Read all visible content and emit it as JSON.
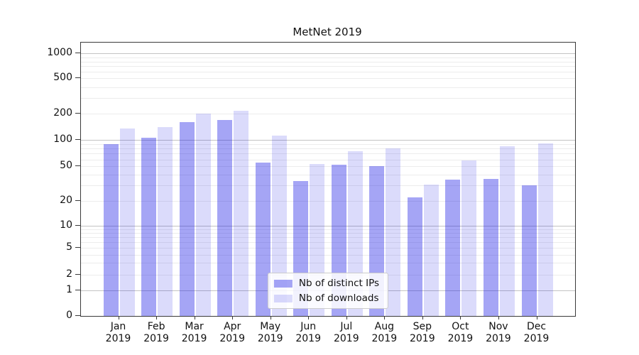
{
  "title": "MetNet 2019",
  "chart_data": {
    "type": "bar",
    "title": "MetNet 2019",
    "categories": [
      "Jan\n2019",
      "Feb\n2019",
      "Mar\n2019",
      "Apr\n2019",
      "May\n2019",
      "Jun\n2019",
      "Jul\n2019",
      "Aug\n2019",
      "Sep\n2019",
      "Oct\n2019",
      "Nov\n2019",
      "Dec\n2019"
    ],
    "series": [
      {
        "name": "Nb of distinct IPs",
        "color": "rgba(30,30,230,0.40)",
        "values": [
          89,
          106,
          160,
          171,
          55,
          34,
          52,
          50,
          22,
          35,
          36,
          30
        ]
      },
      {
        "name": "Nb of downloads",
        "color": "rgba(30,30,230,0.16)",
        "values": [
          135,
          140,
          200,
          215,
          112,
          53,
          74,
          80,
          31,
          58,
          85,
          91
        ]
      }
    ],
    "xlabel": "",
    "ylabel": "",
    "yscale": "symlog",
    "yticks": [
      {
        "label": "0",
        "value": 0
      },
      {
        "label": "1",
        "value": 1
      },
      {
        "label": "2",
        "value": 2
      },
      {
        "label": "5",
        "value": 5
      },
      {
        "label": "10",
        "value": 10
      },
      {
        "label": "20",
        "value": 20
      },
      {
        "label": "50",
        "value": 50
      },
      {
        "label": "100",
        "value": 100
      },
      {
        "label": "200",
        "value": 200
      },
      {
        "label": "500",
        "value": 500
      },
      {
        "label": "1000",
        "value": 1000
      }
    ],
    "ylim": [
      0,
      1300
    ],
    "grid": "horizontal, minor + major (powers of 10)",
    "legend_position": "lower center"
  },
  "colors": {
    "bar_distinct_ips": "rgba(30,30,230,0.40)",
    "bar_downloads": "rgba(30,30,230,0.16)",
    "gridline_major": "#c3c3c3",
    "gridline_minor": "#ececec",
    "axis": "#3a3a3a",
    "background": "#ffffff"
  }
}
